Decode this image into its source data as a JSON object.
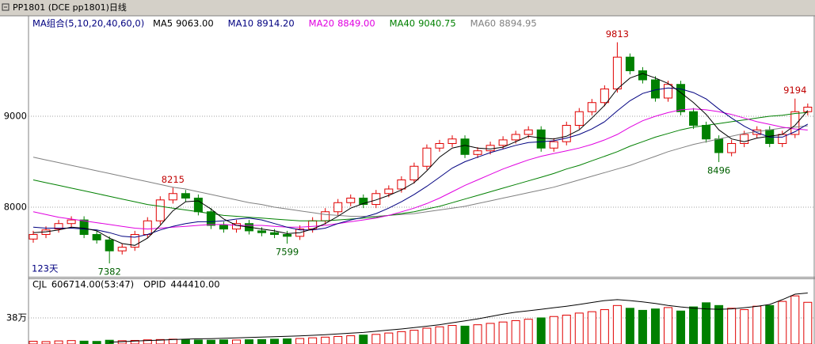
{
  "chart_data": {
    "type": "candlestick",
    "title": "PP1801  (DCE pp1801)日线",
    "ma_group_label": "MA组合(5,10,20,40,60,0)",
    "period_label": "123天",
    "ylim": [
      7235,
      10104
    ],
    "yticks": [
      8000,
      9000
    ],
    "grid": true,
    "up_color": "#e00000",
    "down_color": "#008000",
    "open": [
      7650,
      7700,
      7760,
      7820,
      7860,
      7700,
      7640,
      7520,
      7560,
      7700,
      7850,
      8080,
      8150,
      8100,
      7950,
      7800,
      7760,
      7820,
      7740,
      7720,
      7700,
      7680,
      7760,
      7850,
      7950,
      8050,
      8100,
      8030,
      8150,
      8200,
      8300,
      8450,
      8650,
      8700,
      8750,
      8580,
      8620,
      8680,
      8740,
      8800,
      8850,
      8650,
      8720,
      8900,
      9050,
      9150,
      9300,
      9650,
      9500,
      9400,
      9200,
      9350,
      9050,
      8900,
      8750,
      8600,
      8700,
      8800,
      8850,
      8700,
      8800,
      9050
    ],
    "high": [
      7740,
      7790,
      7860,
      7900,
      7900,
      7740,
      7680,
      7600,
      7740,
      7890,
      8120,
      8215,
      8190,
      8140,
      7990,
      7840,
      7860,
      7860,
      7780,
      7760,
      7740,
      7800,
      7890,
      7990,
      8090,
      8140,
      8140,
      8190,
      8240,
      8340,
      8490,
      8690,
      8740,
      8790,
      8790,
      8660,
      8720,
      8780,
      8840,
      8890,
      8890,
      8760,
      8940,
      9090,
      9190,
      9340,
      9813,
      9690,
      9540,
      9440,
      9390,
      9390,
      9090,
      8940,
      8790,
      8740,
      8840,
      8890,
      8890,
      8840,
      9194,
      9140
    ],
    "low": [
      7610,
      7660,
      7720,
      7780,
      7660,
      7600,
      7382,
      7480,
      7520,
      7660,
      7810,
      8040,
      8060,
      7910,
      7760,
      7720,
      7720,
      7700,
      7680,
      7660,
      7599,
      7640,
      7720,
      7810,
      7910,
      8010,
      7990,
      7990,
      8110,
      8160,
      8260,
      8410,
      8610,
      8660,
      8540,
      8540,
      8580,
      8640,
      8700,
      8760,
      8610,
      8610,
      8680,
      8860,
      9010,
      9110,
      9260,
      9460,
      9360,
      9160,
      9160,
      9010,
      8860,
      8710,
      8496,
      8560,
      8660,
      8760,
      8660,
      8660,
      8760,
      9010
    ],
    "close": [
      7700,
      7750,
      7820,
      7860,
      7700,
      7640,
      7520,
      7560,
      7700,
      7850,
      8080,
      8150,
      8100,
      7950,
      7800,
      7760,
      7820,
      7740,
      7720,
      7700,
      7680,
      7760,
      7850,
      7950,
      8050,
      8100,
      8030,
      8150,
      8200,
      8300,
      8450,
      8650,
      8700,
      8750,
      8580,
      8620,
      8680,
      8740,
      8800,
      8850,
      8650,
      8720,
      8900,
      9050,
      9150,
      9300,
      9650,
      9500,
      9400,
      9200,
      9350,
      9050,
      8900,
      8750,
      8600,
      8700,
      8800,
      8850,
      8700,
      8800,
      9050,
      9100
    ],
    "series": [
      {
        "name": "MA5",
        "color": "#000000",
        "value_label": "9063.00",
        "values": [
          7720,
          7730,
          7750,
          7780,
          7770,
          7740,
          7660,
          7600,
          7580,
          7660,
          7800,
          7960,
          8060,
          8070,
          7980,
          7870,
          7800,
          7780,
          7760,
          7740,
          7710,
          7720,
          7760,
          7820,
          7900,
          7990,
          8040,
          8080,
          8130,
          8190,
          8270,
          8400,
          8550,
          8650,
          8680,
          8650,
          8640,
          8660,
          8720,
          8780,
          8760,
          8750,
          8780,
          8850,
          8980,
          9120,
          9300,
          9420,
          9470,
          9420,
          9360,
          9260,
          9150,
          9020,
          8850,
          8750,
          8720,
          8760,
          8780,
          8800,
          8900,
          9063
        ]
      },
      {
        "name": "MA10",
        "color": "#000080",
        "value_label": "8914.20",
        "values": [
          7780,
          7770,
          7770,
          7770,
          7760,
          7750,
          7720,
          7680,
          7670,
          7700,
          7750,
          7790,
          7820,
          7840,
          7840,
          7850,
          7870,
          7880,
          7860,
          7820,
          7780,
          7750,
          7750,
          7770,
          7820,
          7860,
          7890,
          7930,
          7990,
          8060,
          8140,
          8230,
          8330,
          8430,
          8500,
          8550,
          8600,
          8640,
          8680,
          8710,
          8720,
          8730,
          8760,
          8800,
          8860,
          8940,
          9060,
          9170,
          9250,
          9290,
          9310,
          9300,
          9260,
          9190,
          9080,
          8980,
          8890,
          8820,
          8770,
          8770,
          8830,
          8914.2
        ]
      },
      {
        "name": "MA20",
        "color": "#e000e0",
        "value_label": "8849.00",
        "values": [
          7950,
          7920,
          7890,
          7870,
          7850,
          7830,
          7810,
          7790,
          7770,
          7760,
          7770,
          7780,
          7790,
          7800,
          7810,
          7810,
          7800,
          7800,
          7800,
          7790,
          7780,
          7780,
          7790,
          7800,
          7820,
          7840,
          7860,
          7880,
          7910,
          7950,
          7990,
          8040,
          8100,
          8170,
          8240,
          8300,
          8360,
          8420,
          8470,
          8520,
          8560,
          8590,
          8620,
          8650,
          8690,
          8740,
          8800,
          8880,
          8950,
          9000,
          9040,
          9070,
          9080,
          9070,
          9050,
          9020,
          8980,
          8940,
          8910,
          8880,
          8860,
          8849
        ]
      },
      {
        "name": "MA40",
        "color": "#008000",
        "value_label": "9040.75",
        "values": [
          8300,
          8270,
          8240,
          8210,
          8180,
          8150,
          8120,
          8090,
          8060,
          8030,
          8010,
          7990,
          7970,
          7950,
          7930,
          7910,
          7900,
          7890,
          7880,
          7870,
          7860,
          7850,
          7850,
          7850,
          7860,
          7870,
          7880,
          7890,
          7910,
          7930,
          7950,
          7980,
          8010,
          8050,
          8090,
          8130,
          8170,
          8210,
          8250,
          8290,
          8330,
          8370,
          8420,
          8460,
          8510,
          8560,
          8610,
          8670,
          8720,
          8770,
          8810,
          8850,
          8880,
          8900,
          8920,
          8940,
          8960,
          8980,
          9000,
          9010,
          9030,
          9040.75
        ]
      },
      {
        "name": "MA60",
        "color": "#808080",
        "value_label": "8894.95",
        "values": [
          8550,
          8520,
          8490,
          8460,
          8430,
          8400,
          8370,
          8340,
          8310,
          8280,
          8250,
          8220,
          8200,
          8170,
          8140,
          8110,
          8080,
          8050,
          8030,
          8000,
          7980,
          7960,
          7940,
          7920,
          7910,
          7900,
          7900,
          7900,
          7910,
          7920,
          7930,
          7950,
          7970,
          7990,
          8010,
          8040,
          8070,
          8100,
          8130,
          8160,
          8190,
          8220,
          8260,
          8300,
          8340,
          8380,
          8420,
          8460,
          8510,
          8560,
          8610,
          8650,
          8690,
          8720,
          8750,
          8780,
          8810,
          8830,
          8850,
          8870,
          8880,
          8894.95
        ]
      }
    ],
    "volume": {
      "name": "CJL",
      "value_label": "606714.00(53:47)",
      "values": [
        40000,
        35000,
        45000,
        50000,
        42000,
        38000,
        55000,
        48000,
        52000,
        60000,
        65000,
        70000,
        62000,
        58000,
        55000,
        60000,
        58000,
        62000,
        65000,
        70000,
        75000,
        80000,
        90000,
        100000,
        110000,
        120000,
        130000,
        140000,
        160000,
        180000,
        200000,
        230000,
        250000,
        270000,
        260000,
        280000,
        300000,
        320000,
        340000,
        360000,
        380000,
        400000,
        420000,
        450000,
        470000,
        500000,
        560000,
        520000,
        490000,
        510000,
        530000,
        480000,
        540000,
        600000,
        560000,
        520000,
        500000,
        550000,
        560000,
        620000,
        700000,
        606714
      ]
    },
    "vlim": [
      0,
      955000
    ],
    "vticks": [
      {
        "value": 380000,
        "label": "38万"
      }
    ],
    "open_interest": {
      "name": "OPID",
      "value_label": "444410.00",
      "color": "#000000",
      "axis": "y2",
      "values": [
        null,
        null,
        null,
        null,
        null,
        null,
        190000,
        192000,
        195000,
        198000,
        200000,
        203000,
        205000,
        207000,
        208000,
        210000,
        212000,
        214000,
        216000,
        218000,
        220000,
        222000,
        225000,
        228000,
        232000,
        236000,
        240000,
        246000,
        252000,
        258000,
        265000,
        272000,
        280000,
        290000,
        300000,
        310000,
        322000,
        335000,
        345000,
        352000,
        360000,
        368000,
        376000,
        385000,
        395000,
        405000,
        410000,
        405000,
        398000,
        390000,
        380000,
        372000,
        366000,
        362000,
        360000,
        362000,
        368000,
        375000,
        385000,
        410000,
        438000,
        444410
      ]
    },
    "y2lim": [
      180000,
      520000
    ]
  }
}
